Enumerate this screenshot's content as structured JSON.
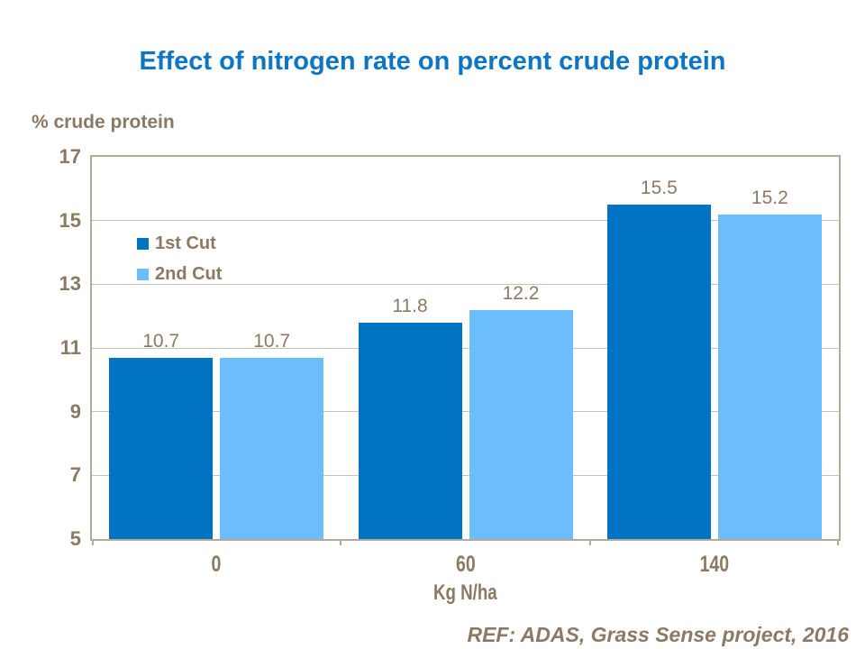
{
  "title": "Effect of nitrogen rate on percent crude protein",
  "y_axis_title": "% crude protein",
  "x_axis_title": "Kg N/ha",
  "footer": "REF: ADAS, Grass Sense project, 2016",
  "colors": {
    "title_blue": "#0d76c4",
    "series_dark_blue": "#0073c2",
    "series_light_blue": "#6cbdfc",
    "axis_text_brown": "#8a7a63",
    "plot_border": "#b4aa9c",
    "gridline": "#c9c2b4",
    "background": "#ffffff"
  },
  "chart_data": {
    "type": "bar",
    "title": "Effect of nitrogen rate on percent crude protein",
    "categories": [
      "0",
      "60",
      "140"
    ],
    "series": [
      {
        "name": "1st Cut",
        "color": "#0073c2",
        "values": [
          10.7,
          11.8,
          15.5
        ]
      },
      {
        "name": "2nd Cut",
        "color": "#6cbdfc",
        "values": [
          10.7,
          12.2,
          15.2
        ]
      }
    ],
    "data_labels": [
      [
        "10.7",
        "11.8",
        "15.5"
      ],
      [
        "10.7",
        "12.2",
        "15.2"
      ]
    ],
    "xlabel": "Kg N/ha",
    "ylabel": "% crude protein",
    "ylim": [
      5,
      17
    ],
    "yticks": [
      5,
      7,
      9,
      11,
      13,
      15,
      17
    ],
    "grid": true,
    "legend_position": "inside-top-left"
  }
}
